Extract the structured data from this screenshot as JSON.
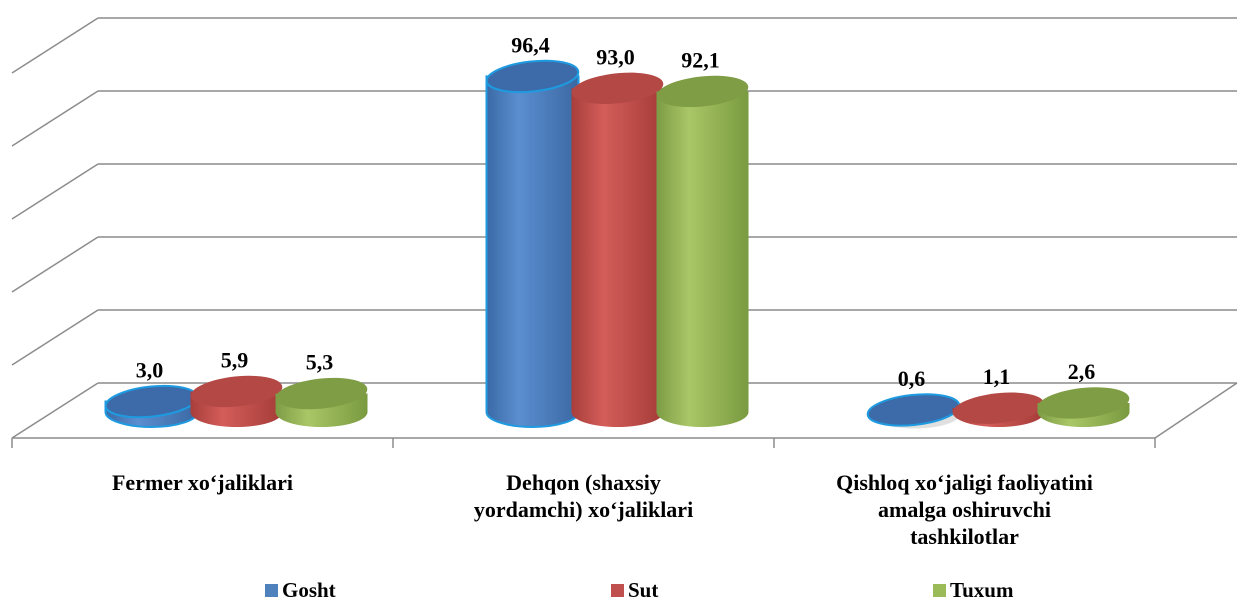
{
  "chart_data": {
    "type": "bar",
    "categories": [
      [
        "Fermer xoʻjaliklari"
      ],
      [
        "Dehqon (shaxsiy",
        "yordamchi) xoʻjaliklari"
      ],
      [
        "Qishloq xoʻjaligi faoliyatini",
        "amalga oshiruvchi",
        "tashkilotlar"
      ]
    ],
    "series": [
      {
        "name": "Gosht",
        "values": [
          3.0,
          96.4,
          0.6
        ],
        "labels": [
          "3,0",
          "96,4",
          "0,6"
        ],
        "color": "#4F81BD"
      },
      {
        "name": "Sut",
        "values": [
          5.9,
          93.0,
          1.1
        ],
        "labels": [
          "5,9",
          "93,0",
          "1,1"
        ],
        "color": "#C0504D"
      },
      {
        "name": "Tuxum",
        "values": [
          5.3,
          92.1,
          2.6
        ],
        "labels": [
          "5,3",
          "92,1",
          "2,6"
        ],
        "color": "#9BBB59"
      }
    ],
    "ylim": [
      0,
      100
    ],
    "grid": true,
    "legend_position": "bottom"
  }
}
